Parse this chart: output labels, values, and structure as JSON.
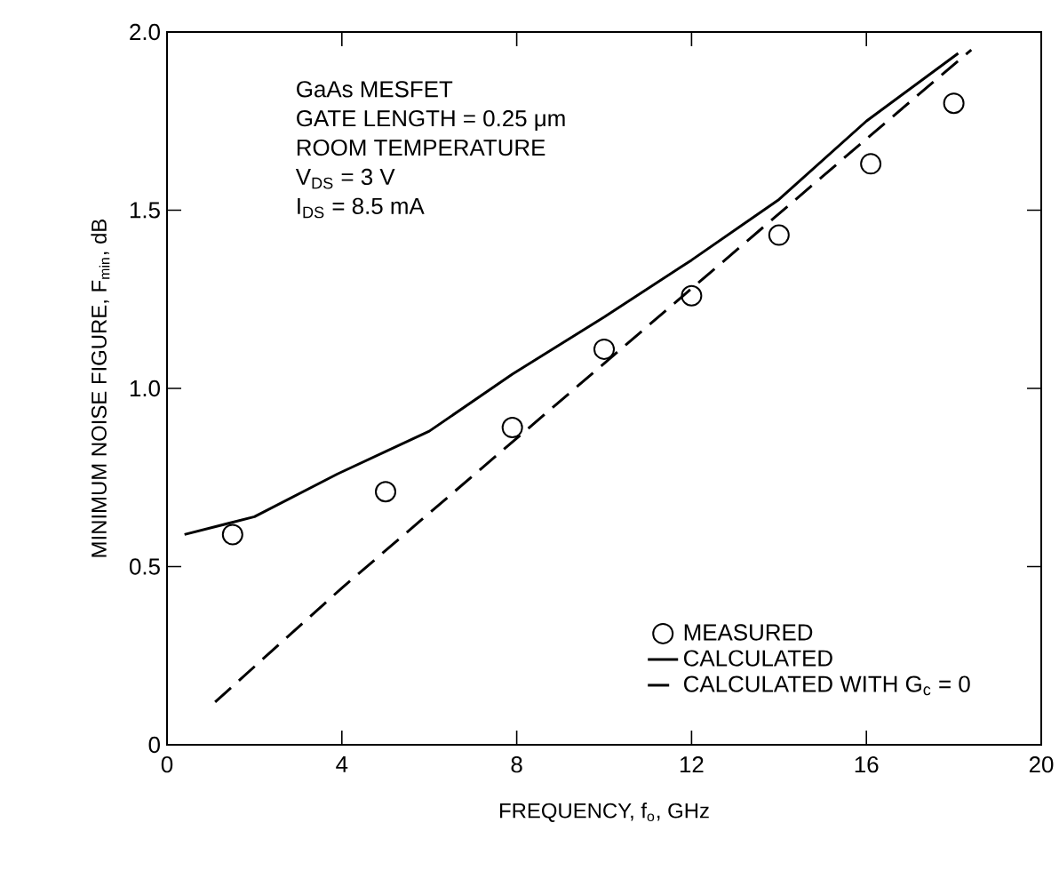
{
  "chart_data": {
    "type": "line",
    "xlabel": "FREQUENCY, f$_{o}$, GHz",
    "ylabel": "MINIMUM NOISE FIGURE, F$_{min}$, dB",
    "xlim": [
      0,
      20
    ],
    "ylim": [
      0,
      2.0
    ],
    "xticks": [
      0,
      4,
      8,
      12,
      16,
      20
    ],
    "yticks": [
      0,
      {
        "value": 0.5,
        "label": "0.5"
      },
      {
        "value": 1.0,
        "label": "1.0"
      },
      {
        "value": 1.5,
        "label": "1.5"
      },
      {
        "value": 2.0,
        "label": "2.0"
      }
    ],
    "grid": false,
    "legend": "bottom right",
    "annotations": [
      "GaAs MESFET",
      "GATE LENGTH = 0.25 μm",
      "ROOM TEMPERATURE",
      "V$_{DS}$ = 3 V",
      "I$_{DS}$ = 8.5 mA"
    ],
    "series": [
      {
        "name": "MEASURED",
        "type": "scatter",
        "marker": "circle",
        "color": "#000000",
        "x": [
          1.5,
          5.0,
          7.9,
          10.0,
          12.0,
          14.0,
          16.1,
          18.0
        ],
        "values": [
          0.59,
          0.71,
          0.89,
          1.11,
          1.26,
          1.43,
          1.63,
          1.8
        ]
      },
      {
        "name": "CALCULATED",
        "line_style": "solid",
        "color": "#000000",
        "x": [
          0.4,
          2,
          3.9,
          6,
          7.9,
          10,
          12,
          14,
          16,
          18.1
        ],
        "values": [
          0.59,
          0.64,
          0.76,
          0.88,
          1.04,
          1.2,
          1.36,
          1.53,
          1.75,
          1.94
        ]
      },
      {
        "name": "CALCULATED WITH G$_{c}$ = 0",
        "line_style": "dashed",
        "color": "#000000",
        "x": [
          1.1,
          4,
          8,
          12,
          16,
          18.4
        ],
        "values": [
          0.12,
          0.44,
          0.86,
          1.28,
          1.7,
          1.95
        ]
      }
    ]
  }
}
